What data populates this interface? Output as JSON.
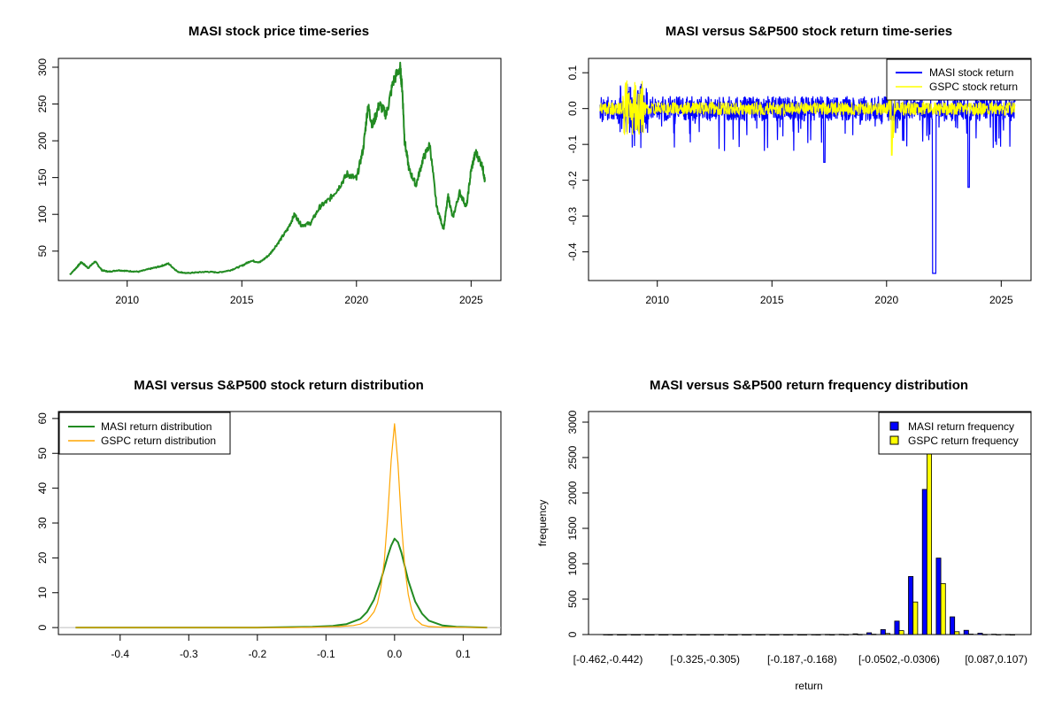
{
  "colors": {
    "price": "#228B22",
    "masi_return": "#0000FF",
    "gspc_return": "#FFFF00",
    "masi_density": "#228B22",
    "gspc_density": "#FFA500",
    "baseline": "#BEBEBE"
  },
  "chart_data": [
    {
      "type": "line",
      "title": "MASI stock price time-series",
      "xlabel": "",
      "ylabel": "",
      "xlim": [
        2007.0,
        2026.3
      ],
      "ylim": [
        10,
        312
      ],
      "x_ticks": [
        2010,
        2015,
        2020,
        2025
      ],
      "y_ticks": [
        50,
        100,
        150,
        200,
        250,
        300
      ],
      "series": [
        {
          "x": [
            2007.5,
            2007.8,
            2008.0,
            2008.3,
            2008.6,
            2008.9,
            2009.2,
            2009.6,
            2010.0,
            2010.5,
            2011.0,
            2011.4,
            2011.8,
            2012.2,
            2012.6,
            2013.0,
            2013.5,
            2014.0,
            2014.5,
            2015.0,
            2015.4,
            2015.8,
            2016.2,
            2016.6,
            2017.0,
            2017.3,
            2017.6,
            2018.0,
            2018.4,
            2018.8,
            2019.2,
            2019.6,
            2020.0,
            2020.3,
            2020.5,
            2020.7,
            2021.0,
            2021.3,
            2021.6,
            2021.9,
            2022.0,
            2022.1,
            2022.3,
            2022.6,
            2022.9,
            2023.2,
            2023.5,
            2023.8,
            2024.0,
            2024.2,
            2024.5,
            2024.8,
            2025.0,
            2025.2,
            2025.5,
            2025.6
          ],
          "values": [
            18,
            28,
            35,
            27,
            36,
            24,
            22,
            24,
            23,
            22,
            26,
            29,
            33,
            22,
            20,
            21,
            22,
            21,
            24,
            30,
            37,
            35,
            45,
            62,
            80,
            100,
            85,
            88,
            110,
            120,
            135,
            155,
            148,
            190,
            248,
            220,
            250,
            235,
            280,
            300,
            270,
            200,
            160,
            140,
            175,
            195,
            110,
            80,
            125,
            95,
            130,
            110,
            160,
            185,
            165,
            145
          ]
        }
      ]
    },
    {
      "type": "line",
      "title": "MASI versus S&P500 stock return time-series",
      "xlabel": "",
      "ylabel": "",
      "xlim": [
        2007.0,
        2026.3
      ],
      "ylim": [
        -0.48,
        0.14
      ],
      "x_ticks": [
        2010,
        2015,
        2020,
        2025
      ],
      "y_ticks": [
        0.1,
        0.0,
        -0.1,
        -0.2,
        -0.3,
        -0.4
      ],
      "y_tick_labels": [
        "0.1",
        "0.0",
        "-0.1",
        "-0.2",
        "-0.3",
        "-0.4"
      ],
      "legend_position": "top-right",
      "series": [
        {
          "name": "MASI stock return"
        },
        {
          "name": "GSPC stock return"
        }
      ]
    },
    {
      "type": "line",
      "title": "MASI versus S&P500 stock return distribution",
      "xlabel": "",
      "ylabel": "",
      "xlim": [
        -0.49,
        0.155
      ],
      "ylim": [
        -2,
        62
      ],
      "x_ticks": [
        -0.4,
        -0.3,
        -0.2,
        -0.1,
        0.0,
        0.1
      ],
      "x_tick_labels": [
        "-0.4",
        "-0.3",
        "-0.2",
        "-0.1",
        "0.0",
        "0.1"
      ],
      "y_ticks": [
        0,
        10,
        20,
        30,
        40,
        50,
        60
      ],
      "legend_position": "top-left",
      "series": [
        {
          "name": "MASI return distribution",
          "x": [
            -0.465,
            -0.3,
            -0.2,
            -0.12,
            -0.09,
            -0.07,
            -0.05,
            -0.04,
            -0.03,
            -0.02,
            -0.015,
            -0.01,
            -0.005,
            0.0,
            0.005,
            0.01,
            0.015,
            0.02,
            0.03,
            0.04,
            0.05,
            0.07,
            0.09,
            0.135
          ],
          "values": [
            0,
            0,
            0,
            0.2,
            0.5,
            1.0,
            2.5,
            4.5,
            8.0,
            13.5,
            17.0,
            20.5,
            23.5,
            25.5,
            24.5,
            21.5,
            17.5,
            13.5,
            7.5,
            4.0,
            2.0,
            0.6,
            0.2,
            0
          ]
        },
        {
          "name": "GSPC return distribution",
          "x": [
            -0.465,
            -0.15,
            -0.1,
            -0.08,
            -0.06,
            -0.05,
            -0.04,
            -0.03,
            -0.025,
            -0.02,
            -0.015,
            -0.01,
            -0.005,
            0.0,
            0.005,
            0.01,
            0.015,
            0.02,
            0.025,
            0.03,
            0.04,
            0.05,
            0.07,
            0.09,
            0.135
          ],
          "values": [
            0,
            0,
            0.2,
            0.3,
            0.6,
            1.0,
            2.0,
            4.5,
            7.0,
            11.5,
            19.0,
            32.0,
            48.0,
            58.5,
            47.0,
            30.0,
            17.0,
            9.5,
            5.0,
            2.5,
            0.8,
            0.3,
            0.1,
            0.1,
            0
          ]
        }
      ]
    },
    {
      "type": "bar",
      "title": "MASI versus S&P500 return frequency distribution",
      "xlabel": "return",
      "ylabel": "frequency",
      "ylim": [
        0,
        3150
      ],
      "y_ticks": [
        0,
        500,
        1000,
        1500,
        2000,
        2500,
        3000
      ],
      "x_tick_labels": [
        "[-0.462,-0.442)",
        "[-0.325,-0.305)",
        "[-0.187,-0.168)",
        "[-0.0502,-0.0306)",
        "[0.087,0.107)"
      ],
      "x_tick_positions": [
        0,
        7,
        14,
        21,
        28
      ],
      "legend_position": "top-right",
      "series": [
        {
          "name": "MASI return frequency",
          "values": [
            1,
            0,
            0,
            0,
            0,
            0,
            0,
            0,
            0,
            0,
            0,
            0,
            0,
            0,
            0,
            1,
            2,
            4,
            10,
            25,
            70,
            190,
            820,
            2050,
            1080,
            250,
            60,
            20,
            5,
            2
          ]
        },
        {
          "name": "GSPC return frequency",
          "values": [
            0,
            0,
            0,
            0,
            0,
            0,
            0,
            0,
            0,
            0,
            0,
            0,
            0,
            0,
            0,
            0,
            0,
            1,
            2,
            5,
            15,
            55,
            460,
            2620,
            720,
            40,
            6,
            2,
            1,
            0
          ]
        }
      ]
    }
  ]
}
